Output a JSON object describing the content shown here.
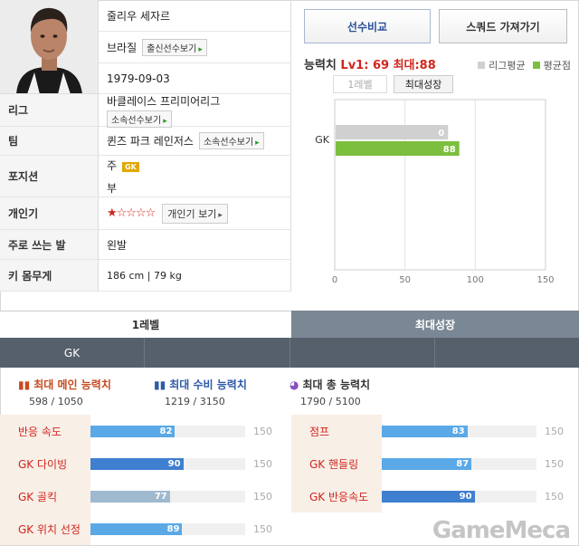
{
  "player": {
    "name": "줄리우 세자르",
    "nation": "브라질",
    "nation_button": "출신선수보기",
    "birth": "1979-09-03",
    "rows": {
      "league_label": "리그",
      "league": "바클레이스 프리미어리그",
      "league_button": "소속선수보기",
      "team_label": "팀",
      "team": "퀸즈 파크 레인저스",
      "team_button": "소속선수보기",
      "position_label": "포지션",
      "position_main_prefix": "주",
      "position_main": "GK",
      "position_sub": "부",
      "popularity_label": "개인기",
      "popularity_stars": "★☆☆☆☆",
      "popularity_button": "개인기 보기",
      "foot_label": "주로 쓰는 발",
      "foot": "왼발",
      "body_label": "키 몸무게",
      "body": "186 cm | 79 kg"
    }
  },
  "right_panel": {
    "compare_button": "선수비교",
    "squad_button": "스쿼드 가져가기",
    "ability_label": "능력치",
    "ability_value": "Lv1: 69 최대:88",
    "legend_league": "리그평균",
    "legend_avg": "평균점",
    "tab_lv1": "1레벨",
    "tab_max": "최대성장",
    "colors": {
      "league": "#d0d0d0",
      "avg": "#7cbf3f"
    }
  },
  "chart_data": {
    "type": "bar",
    "orientation": "horizontal",
    "categories": [
      "GK"
    ],
    "series": [
      {
        "name": "리그평균",
        "values": [
          0
        ]
      },
      {
        "name": "평균점",
        "values": [
          88
        ]
      }
    ],
    "xlim": [
      0,
      150
    ],
    "xticks": [
      "0",
      "50",
      "100",
      "150"
    ],
    "grid": true
  },
  "bottom": {
    "tab_lv1": "1레벨",
    "tab_max": "최대성장",
    "position_tab": "GK",
    "categories": [
      {
        "title": "최대 메인 능력치",
        "value": "598 / 1050"
      },
      {
        "title": "최대 수비 능력치",
        "value": "1219 / 3150"
      },
      {
        "title": "최대 총 능력치",
        "value": "1790 / 5100"
      }
    ],
    "stats_left": [
      {
        "label": "반응 속도",
        "value": 82,
        "value_text": "82",
        "max": "150",
        "color": "#5aa9e6"
      },
      {
        "label": "GK 다이빙",
        "value": 90,
        "value_text": "90",
        "max": "150",
        "color": "#3f7fd0"
      },
      {
        "label": "GK 골킥",
        "value": 77,
        "value_text": "77",
        "max": "150",
        "color": "#9fb9cf"
      },
      {
        "label": "GK 위치 선정",
        "value": 89,
        "value_text": "89",
        "max": "150",
        "color": "#5aa9e6"
      }
    ],
    "stats_right": [
      {
        "label": "점프",
        "value": 83,
        "value_text": "83",
        "max": "150",
        "color": "#5aa9e6"
      },
      {
        "label": "GK 핸들링",
        "value": 87,
        "value_text": "87",
        "max": "150",
        "color": "#5aa9e6"
      },
      {
        "label": "GK 반응속도",
        "value": 90,
        "value_text": "90",
        "max": "150",
        "color": "#3f7fd0"
      }
    ]
  },
  "watermark": "GameMeca"
}
